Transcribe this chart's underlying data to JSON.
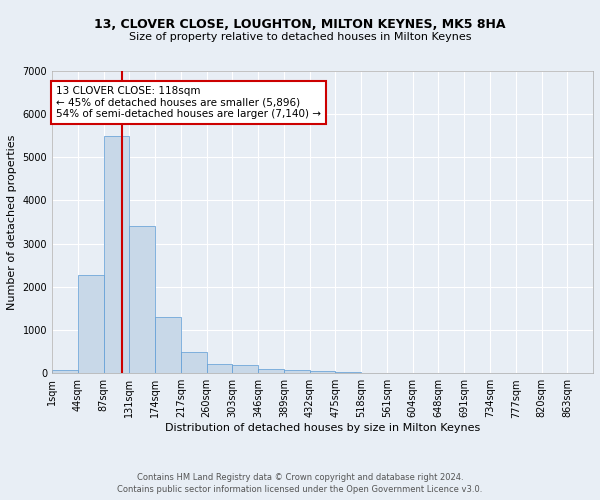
{
  "title1": "13, CLOVER CLOSE, LOUGHTON, MILTON KEYNES, MK5 8HA",
  "title2": "Size of property relative to detached houses in Milton Keynes",
  "xlabel": "Distribution of detached houses by size in Milton Keynes",
  "ylabel": "Number of detached properties",
  "footnote1": "Contains HM Land Registry data © Crown copyright and database right 2024.",
  "footnote2": "Contains public sector information licensed under the Open Government Licence v3.0.",
  "bar_labels": [
    "1sqm",
    "44sqm",
    "87sqm",
    "131sqm",
    "174sqm",
    "217sqm",
    "260sqm",
    "303sqm",
    "346sqm",
    "389sqm",
    "432sqm",
    "475sqm",
    "518sqm",
    "561sqm",
    "604sqm",
    "648sqm",
    "691sqm",
    "734sqm",
    "777sqm",
    "820sqm",
    "863sqm"
  ],
  "bar_heights": [
    80,
    2280,
    5490,
    3400,
    1300,
    490,
    220,
    190,
    100,
    80,
    40,
    15,
    5,
    2,
    1,
    1,
    0,
    0,
    0,
    0,
    0
  ],
  "bar_color": "#c8d8e8",
  "bar_edge_color": "#5b9bd5",
  "vline_x": 2.7,
  "vline_color": "#cc0000",
  "ylim": [
    0,
    7000
  ],
  "yticks": [
    0,
    1000,
    2000,
    3000,
    4000,
    5000,
    6000,
    7000
  ],
  "annotation_text": "13 CLOVER CLOSE: 118sqm\n← 45% of detached houses are smaller (5,896)\n54% of semi-detached houses are larger (7,140) →",
  "annotation_box_color": "#ffffff",
  "annotation_box_edge": "#cc0000",
  "bg_color": "#e8eef5",
  "plot_bg_color": "#e8eef5",
  "grid_color": "#ffffff",
  "title1_fontsize": 9,
  "title2_fontsize": 8,
  "xlabel_fontsize": 8,
  "ylabel_fontsize": 8,
  "tick_fontsize": 7,
  "annot_fontsize": 7.5,
  "footnote_fontsize": 6
}
